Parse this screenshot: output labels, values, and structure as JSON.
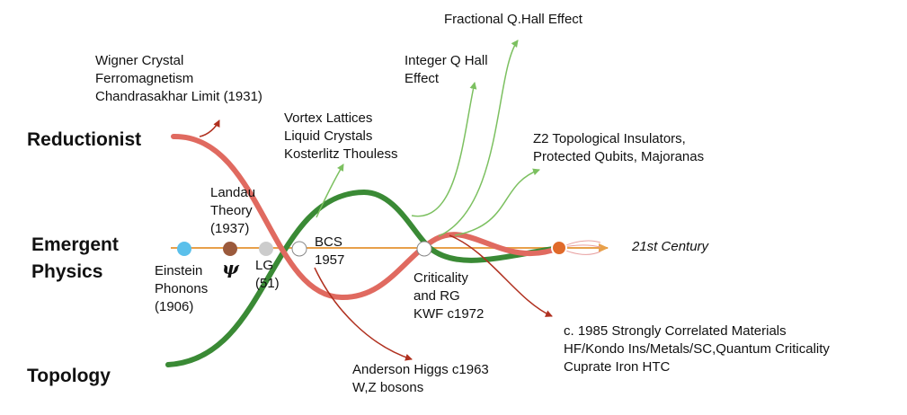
{
  "side_labels": {
    "reductionist": "Reductionist",
    "emergent": "Emergent\nPhysics",
    "topology": "Topology"
  },
  "timeline_end_label": "21st Century",
  "points": {
    "einstein": "Einstein\nPhonons\n(1906)",
    "landau": "Landau\nTheory\n(1937)",
    "psi": "ψ",
    "lg": "LG\n(51)",
    "bcs": "BCS\n1957",
    "criticality": "Criticality\nand RG\nKWF c1972"
  },
  "branches": {
    "wigner": "Wigner Crystal\nFerromagnetism\nChandrasakhar Limit (1931)",
    "vortex": "Vortex Lattices\nLiquid Crystals\nKosterlitz Thouless",
    "anderson": "Anderson Higgs c1963\nW,Z bosons",
    "integer_qhe": "Integer Q Hall\nEffect",
    "fractional_qhe": "Fractional Q.Hall Effect",
    "z2": "Z2 Topological Insulators,\nProtected Qubits, Majoranas",
    "scm": "c. 1985 Strongly Correlated Materials\nHF/Kondo Ins/Metals/SC,Quantum Criticality\nCuprate Iron HTC"
  },
  "colors": {
    "timeline": "#e8a04a",
    "reductionist_curve": "#e06a60",
    "topology_curve": "#3a8a35",
    "red_arrow": "#b0301f",
    "green_arrow": "#7cc060",
    "einstein_dot": "#5bc0eb",
    "landau_dot": "#9b5a3c",
    "lg_dot": "#cccccc",
    "end_dot": "#e06a2a"
  }
}
